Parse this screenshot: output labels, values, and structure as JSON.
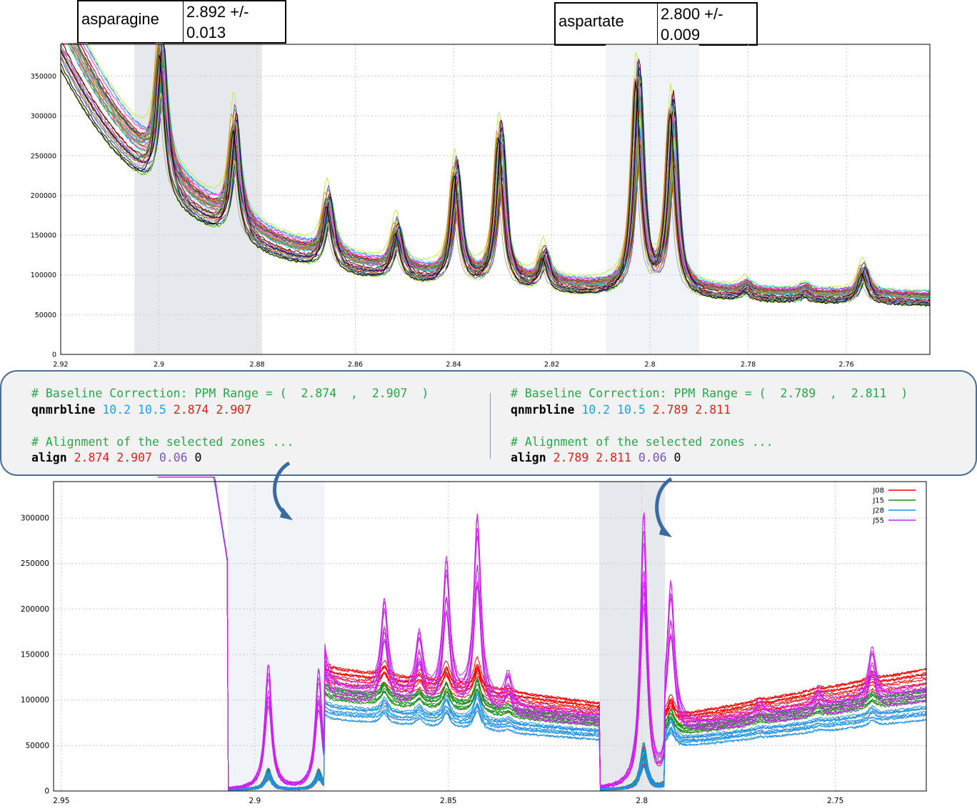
{
  "boxes": [
    {
      "name": "asparagine",
      "value_line1": "2.892 +/-",
      "value_line2": "0.013"
    },
    {
      "name": "aspartate",
      "value_line1": "2.800 +/-",
      "value_line2": "0.009"
    }
  ],
  "code": {
    "left": {
      "comment1": "# Baseline Correction: PPM Range = (  2.874  ,  2.907  )",
      "cmd1": "qnmrbline",
      "p1": "10.2",
      "p2": "10.5",
      "p3": "2.874",
      "p4": "2.907",
      "comment2": "# Alignment of the selected zones ...",
      "cmd2": "align",
      "q1": "2.874",
      "q2": "2.907",
      "q3": "0.06",
      "q4": "0"
    },
    "right": {
      "comment1": "# Baseline Correction: PPM Range = (  2.789  ,  2.811  )",
      "cmd1": "qnmrbline",
      "p1": "10.2",
      "p2": "10.5",
      "p3": "2.789",
      "p4": "2.811",
      "comment2": "# Alignment of the selected zones ...",
      "cmd2": "align",
      "q1": "2.789",
      "q2": "2.811",
      "q3": "0.06",
      "q4": "0"
    }
  },
  "chart_data": [
    {
      "type": "line",
      "xlim": [
        2.92,
        2.743
      ],
      "ylim": [
        0,
        390000
      ],
      "x_ticks": [
        "2.92",
        "2.9",
        "2.88",
        "2.86",
        "2.84",
        "2.82",
        "2.8",
        "2.78",
        "2.76"
      ],
      "x_tick_values": [
        2.92,
        2.9,
        2.88,
        2.86,
        2.84,
        2.82,
        2.8,
        2.78,
        2.76
      ],
      "y_ticks": [
        "0",
        "50000",
        "100000",
        "150000",
        "200000",
        "250000",
        "300000",
        "350000"
      ],
      "y_tick_values": [
        0,
        50000,
        100000,
        150000,
        200000,
        250000,
        300000,
        350000
      ],
      "shaded_regions": [
        [
          2.905,
          2.879
        ],
        [
          2.809,
          2.79
        ]
      ],
      "grid": true,
      "peaks": [
        {
          "ppm": 2.8995,
          "max": 352000
        },
        {
          "ppm": 2.8845,
          "max": 287000
        },
        {
          "ppm": 2.8655,
          "max": 204000
        },
        {
          "ppm": 2.8515,
          "max": 170000
        },
        {
          "ppm": 2.8395,
          "max": 256000
        },
        {
          "ppm": 2.8305,
          "max": 310000
        },
        {
          "ppm": 2.8215,
          "max": 138000
        },
        {
          "ppm": 2.8025,
          "max": 390000
        },
        {
          "ppm": 2.7955,
          "max": 345000
        },
        {
          "ppm": 2.7805,
          "max": 95000
        },
        {
          "ppm": 2.7685,
          "max": 88000
        },
        {
          "ppm": 2.7565,
          "max": 123000
        }
      ],
      "spectra_count": 40
    },
    {
      "type": "line",
      "xlim": [
        2.952,
        2.7265
      ],
      "ylim": [
        0,
        340000
      ],
      "x_ticks": [
        "2.95",
        "2.9",
        "2.85",
        "2.8",
        "2.75"
      ],
      "x_tick_values": [
        2.95,
        2.9,
        2.85,
        2.8,
        2.75
      ],
      "y_ticks": [
        "0",
        "50000",
        "100000",
        "150000",
        "200000",
        "250000",
        "300000"
      ],
      "y_tick_values": [
        0,
        50000,
        100000,
        150000,
        200000,
        250000,
        300000
      ],
      "shaded_regions": [
        [
          2.907,
          2.882
        ],
        [
          2.811,
          2.794
        ]
      ],
      "grid": true,
      "legend_position": "top-right",
      "series": [
        {
          "name": "J08",
          "color": "#ff0000"
        },
        {
          "name": "J15",
          "color": "#1e8c1e"
        },
        {
          "name": "J28",
          "color": "#1e90e6"
        },
        {
          "name": "J55",
          "color": "#cc22ee"
        }
      ],
      "peaks": [
        {
          "ppm": 2.8965,
          "max": 138000
        },
        {
          "ppm": 2.8835,
          "max": 132000
        },
        {
          "ppm": 2.8665,
          "max": 205000
        },
        {
          "ppm": 2.8575,
          "max": 171000
        },
        {
          "ppm": 2.8505,
          "max": 256000
        },
        {
          "ppm": 2.8425,
          "max": 310000
        },
        {
          "ppm": 2.8345,
          "max": 138000
        },
        {
          "ppm": 2.7995,
          "max": 305000
        },
        {
          "ppm": 2.7925,
          "max": 260000
        },
        {
          "ppm": 2.7695,
          "max": 95000
        },
        {
          "ppm": 2.7545,
          "max": 123000
        },
        {
          "ppm": 2.7405,
          "max": 158000
        }
      ],
      "discontinuities": [
        2.907,
        2.882,
        2.811,
        2.794
      ]
    }
  ],
  "colors": {
    "panel_border": "#4a6f98",
    "panel_bg": "#f2f2f2",
    "shade_dark": "#e6e9ec",
    "shade_light": "#f0f4f9",
    "arrow": "#3a6aa0"
  }
}
